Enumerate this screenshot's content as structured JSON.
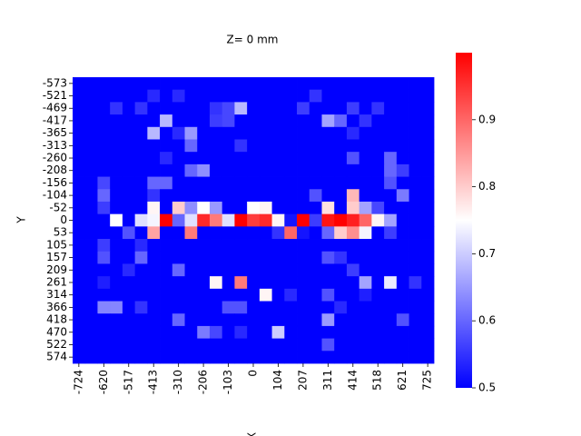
{
  "chart_data": {
    "type": "heatmap",
    "title": "Z= 0 mm",
    "xlabel": "X",
    "ylabel": "Y",
    "x": [
      -724,
      null,
      -620,
      null,
      -517,
      null,
      -413,
      null,
      -310,
      null,
      -206,
      null,
      -103,
      null,
      0,
      null,
      104,
      null,
      207,
      null,
      311,
      null,
      414,
      null,
      518,
      null,
      621,
      null,
      725
    ],
    "y": [
      -573,
      -521,
      -469,
      -417,
      -365,
      -313,
      -260,
      -208,
      -156,
      -104,
      -52,
      0,
      53,
      105,
      157,
      209,
      261,
      314,
      366,
      418,
      470,
      522,
      574
    ],
    "colormap": "bwr",
    "clim": [
      0.5,
      1.0
    ],
    "cticks": [
      0.5,
      0.6,
      0.7,
      0.8,
      0.9
    ],
    "z": [
      [
        0.5,
        0.5,
        0.5,
        0.5,
        0.5,
        0.5,
        0.5,
        0.5,
        0.5,
        0.5,
        0.5,
        0.5,
        0.5,
        0.5,
        0.5,
        0.5,
        0.5,
        0.5,
        0.5,
        0.5,
        0.5,
        0.5,
        0.5,
        0.5,
        0.5,
        0.5,
        0.5,
        0.5,
        0.5
      ],
      [
        0.5,
        0.5,
        0.5,
        0.5,
        0.5,
        0.5,
        0.54,
        0.5,
        0.54,
        0.5,
        0.5,
        0.5,
        0.5,
        0.5,
        0.5,
        0.5,
        0.5,
        0.5,
        0.5,
        0.55,
        0.5,
        0.5,
        0.5,
        0.5,
        0.5,
        0.5,
        0.5,
        0.5,
        0.5
      ],
      [
        0.5,
        0.5,
        0.5,
        0.55,
        0.5,
        0.55,
        0.5,
        0.5,
        0.5,
        0.5,
        0.5,
        0.55,
        0.57,
        0.68,
        0.5,
        0.5,
        0.5,
        0.5,
        0.56,
        0.5,
        0.5,
        0.5,
        0.56,
        0.5,
        0.55,
        0.5,
        0.5,
        0.5,
        0.5
      ],
      [
        0.5,
        0.5,
        0.5,
        0.5,
        0.5,
        0.5,
        0.5,
        0.68,
        0.5,
        0.5,
        0.5,
        0.56,
        0.57,
        0.5,
        0.5,
        0.5,
        0.5,
        0.5,
        0.5,
        0.5,
        0.66,
        0.6,
        0.5,
        0.55,
        0.5,
        0.5,
        0.5,
        0.5,
        0.5
      ],
      [
        0.5,
        0.5,
        0.5,
        0.5,
        0.5,
        0.5,
        0.68,
        0.5,
        0.54,
        0.65,
        0.5,
        0.5,
        0.5,
        0.5,
        0.5,
        0.5,
        0.5,
        0.5,
        0.5,
        0.5,
        0.5,
        0.5,
        0.54,
        0.5,
        0.5,
        0.5,
        0.5,
        0.5,
        0.5
      ],
      [
        0.5,
        0.5,
        0.5,
        0.5,
        0.5,
        0.5,
        0.5,
        0.5,
        0.5,
        0.6,
        0.5,
        0.5,
        0.5,
        0.55,
        0.5,
        0.5,
        0.5,
        0.5,
        0.5,
        0.5,
        0.5,
        0.5,
        0.5,
        0.5,
        0.5,
        0.5,
        0.5,
        0.5,
        0.5
      ],
      [
        0.5,
        0.5,
        0.5,
        0.5,
        0.5,
        0.5,
        0.5,
        0.54,
        0.5,
        0.5,
        0.5,
        0.5,
        0.5,
        0.5,
        0.5,
        0.5,
        0.5,
        0.5,
        0.5,
        0.5,
        0.5,
        0.5,
        0.58,
        0.5,
        0.5,
        0.6,
        0.5,
        0.5,
        0.5
      ],
      [
        0.5,
        0.5,
        0.5,
        0.5,
        0.5,
        0.5,
        0.5,
        0.5,
        0.5,
        0.6,
        0.64,
        0.5,
        0.5,
        0.5,
        0.5,
        0.5,
        0.5,
        0.5,
        0.5,
        0.5,
        0.5,
        0.5,
        0.5,
        0.5,
        0.5,
        0.6,
        0.56,
        0.5,
        0.5
      ],
      [
        0.5,
        0.5,
        0.57,
        0.5,
        0.5,
        0.5,
        0.6,
        0.6,
        0.5,
        0.5,
        0.5,
        0.5,
        0.5,
        0.5,
        0.5,
        0.5,
        0.5,
        0.5,
        0.5,
        0.5,
        0.5,
        0.5,
        0.5,
        0.5,
        0.5,
        0.58,
        0.5,
        0.5,
        0.5
      ],
      [
        0.5,
        0.5,
        0.6,
        0.5,
        0.5,
        0.5,
        0.55,
        0.5,
        0.5,
        0.5,
        0.5,
        0.5,
        0.5,
        0.5,
        0.5,
        0.5,
        0.5,
        0.5,
        0.5,
        0.58,
        0.5,
        0.5,
        0.82,
        0.5,
        0.5,
        0.5,
        0.62,
        0.5,
        0.5
      ],
      [
        0.5,
        0.5,
        0.56,
        0.5,
        0.5,
        0.5,
        0.76,
        0.5,
        0.8,
        0.64,
        0.75,
        0.65,
        0.5,
        0.5,
        0.75,
        0.76,
        0.5,
        0.5,
        0.5,
        0.5,
        0.78,
        0.5,
        0.8,
        0.66,
        0.57,
        0.5,
        0.5,
        0.5,
        0.5
      ],
      [
        0.5,
        0.5,
        0.5,
        0.75,
        0.5,
        0.72,
        0.74,
        1.0,
        0.6,
        0.72,
        0.96,
        0.88,
        0.72,
        1.0,
        0.94,
        0.96,
        0.76,
        0.52,
        1.0,
        0.56,
        0.98,
        1.0,
        0.97,
        0.9,
        0.76,
        0.66,
        0.5,
        0.5,
        0.5
      ],
      [
        0.5,
        0.5,
        0.5,
        0.5,
        0.58,
        0.5,
        0.84,
        0.5,
        0.5,
        0.88,
        0.5,
        0.5,
        0.5,
        0.5,
        0.5,
        0.5,
        0.55,
        0.9,
        0.52,
        0.5,
        0.6,
        0.8,
        0.86,
        0.74,
        0.5,
        0.56,
        0.5,
        0.5,
        0.5
      ],
      [
        0.5,
        0.5,
        0.56,
        0.5,
        0.5,
        0.54,
        0.5,
        0.5,
        0.5,
        0.5,
        0.5,
        0.5,
        0.5,
        0.5,
        0.5,
        0.5,
        0.5,
        0.5,
        0.5,
        0.5,
        0.5,
        0.5,
        0.5,
        0.5,
        0.5,
        0.5,
        0.5,
        0.5,
        0.5
      ],
      [
        0.5,
        0.5,
        0.58,
        0.5,
        0.5,
        0.6,
        0.5,
        0.5,
        0.5,
        0.5,
        0.5,
        0.5,
        0.5,
        0.5,
        0.5,
        0.5,
        0.5,
        0.5,
        0.5,
        0.5,
        0.58,
        0.55,
        0.5,
        0.5,
        0.5,
        0.5,
        0.5,
        0.5,
        0.5
      ],
      [
        0.5,
        0.5,
        0.5,
        0.5,
        0.54,
        0.5,
        0.5,
        0.5,
        0.6,
        0.5,
        0.5,
        0.5,
        0.5,
        0.5,
        0.5,
        0.5,
        0.5,
        0.5,
        0.5,
        0.5,
        0.5,
        0.5,
        0.56,
        0.5,
        0.5,
        0.5,
        0.5,
        0.5,
        0.5
      ],
      [
        0.5,
        0.5,
        0.53,
        0.5,
        0.5,
        0.5,
        0.5,
        0.5,
        0.5,
        0.5,
        0.5,
        0.76,
        0.5,
        0.88,
        0.5,
        0.5,
        0.5,
        0.5,
        0.5,
        0.5,
        0.5,
        0.5,
        0.5,
        0.66,
        0.5,
        0.73,
        0.5,
        0.55,
        0.5
      ],
      [
        0.5,
        0.5,
        0.5,
        0.5,
        0.5,
        0.5,
        0.5,
        0.5,
        0.5,
        0.5,
        0.5,
        0.5,
        0.5,
        0.5,
        0.5,
        0.76,
        0.5,
        0.54,
        0.5,
        0.5,
        0.58,
        0.5,
        0.5,
        0.53,
        0.5,
        0.5,
        0.5,
        0.5,
        0.5
      ],
      [
        0.5,
        0.5,
        0.63,
        0.63,
        0.5,
        0.55,
        0.5,
        0.5,
        0.5,
        0.5,
        0.5,
        0.5,
        0.58,
        0.58,
        0.5,
        0.5,
        0.5,
        0.5,
        0.5,
        0.5,
        0.5,
        0.54,
        0.5,
        0.5,
        0.5,
        0.5,
        0.5,
        0.5,
        0.5
      ],
      [
        0.5,
        0.5,
        0.5,
        0.5,
        0.5,
        0.5,
        0.5,
        0.5,
        0.6,
        0.5,
        0.5,
        0.5,
        0.5,
        0.5,
        0.5,
        0.5,
        0.5,
        0.5,
        0.5,
        0.5,
        0.65,
        0.5,
        0.5,
        0.5,
        0.5,
        0.5,
        0.58,
        0.5,
        0.5
      ],
      [
        0.5,
        0.5,
        0.5,
        0.5,
        0.5,
        0.5,
        0.5,
        0.5,
        0.5,
        0.5,
        0.62,
        0.57,
        0.5,
        0.54,
        0.5,
        0.5,
        0.7,
        0.5,
        0.5,
        0.5,
        0.5,
        0.5,
        0.5,
        0.5,
        0.5,
        0.5,
        0.5,
        0.5,
        0.5
      ],
      [
        0.5,
        0.5,
        0.5,
        0.5,
        0.5,
        0.5,
        0.5,
        0.5,
        0.5,
        0.5,
        0.5,
        0.5,
        0.5,
        0.5,
        0.5,
        0.5,
        0.5,
        0.5,
        0.5,
        0.5,
        0.58,
        0.5,
        0.5,
        0.5,
        0.5,
        0.5,
        0.5,
        0.5,
        0.5
      ],
      [
        0.5,
        0.5,
        0.5,
        0.5,
        0.5,
        0.5,
        0.5,
        0.5,
        0.5,
        0.5,
        0.5,
        0.5,
        0.5,
        0.5,
        0.5,
        0.5,
        0.5,
        0.5,
        0.5,
        0.5,
        0.5,
        0.5,
        0.5,
        0.5,
        0.5,
        0.5,
        0.5,
        0.5,
        0.5
      ]
    ]
  }
}
